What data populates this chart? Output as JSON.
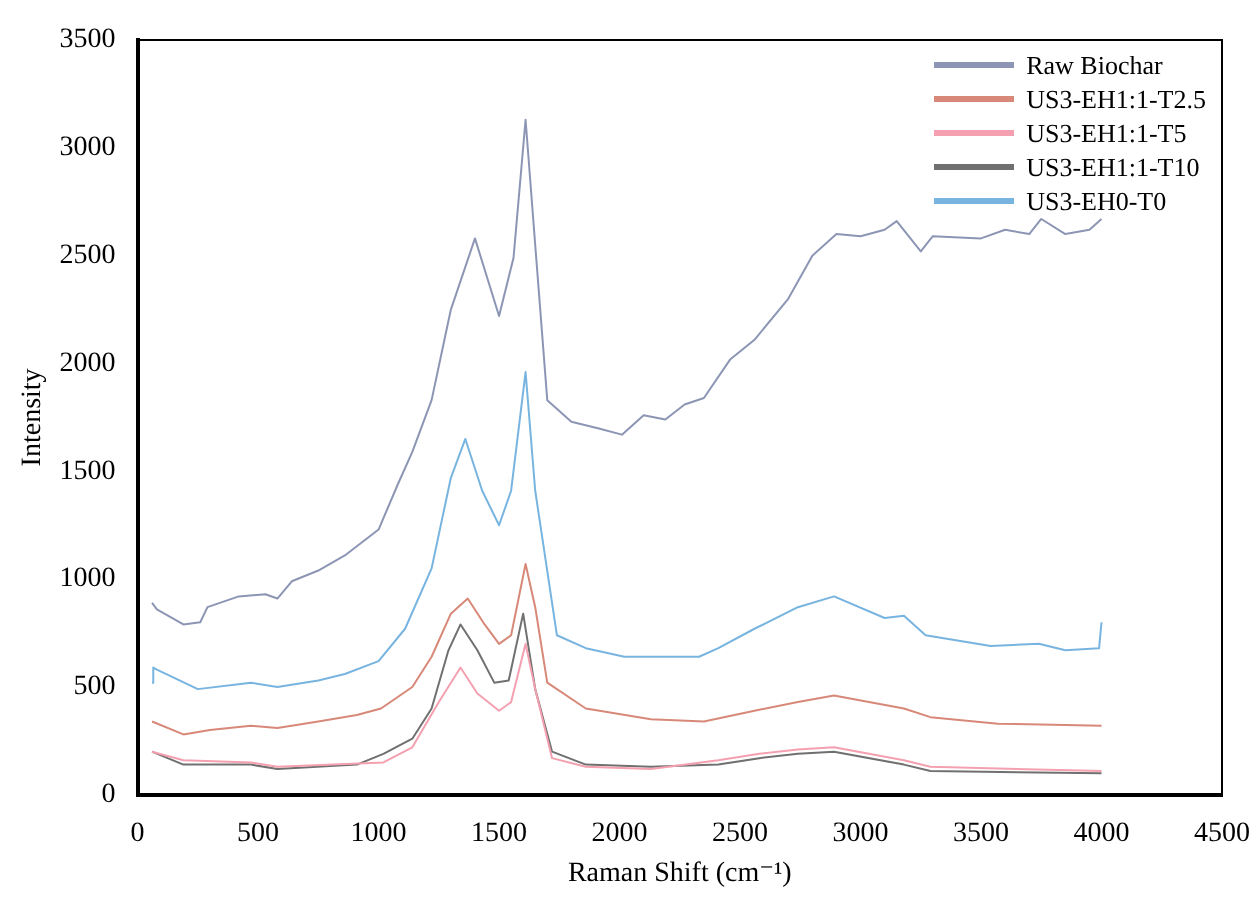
{
  "chart_data": {
    "type": "line",
    "xlabel": "Raman Shift (cm⁻¹)",
    "ylabel": "Intensity",
    "xlim": [
      0,
      4500
    ],
    "xticks": [
      0,
      500,
      1000,
      1500,
      2000,
      2500,
      3000,
      3500,
      4000,
      4500
    ],
    "ylim": [
      0,
      3500
    ],
    "yticks": [
      0,
      500,
      1000,
      1500,
      2000,
      2500,
      3000,
      3500
    ],
    "grid": false,
    "legend": "top right",
    "marker": "none",
    "line_style": "solid",
    "series": [
      {
        "name": "Raw Biochar",
        "color": "#8c96b4",
        "x": [
          60,
          80,
          190,
          260,
          290,
          420,
          530,
          580,
          640,
          750,
          860,
          1000,
          1080,
          1140,
          1220,
          1300,
          1400,
          1500,
          1560,
          1610,
          1650,
          1700,
          1800,
          1910,
          2010,
          2100,
          2190,
          2270,
          2350,
          2460,
          2560,
          2700,
          2800,
          2900,
          3000,
          3100,
          3150,
          3250,
          3300,
          3500,
          3600,
          3700,
          3750,
          3850,
          3950,
          4000
        ],
        "values": [
          890,
          860,
          790,
          800,
          870,
          920,
          930,
          910,
          990,
          1040,
          1110,
          1230,
          1440,
          1590,
          1830,
          2250,
          2580,
          2220,
          2490,
          3130,
          2550,
          1830,
          1730,
          1700,
          1670,
          1760,
          1740,
          1810,
          1840,
          2020,
          2110,
          2300,
          2500,
          2600,
          2590,
          2620,
          2660,
          2520,
          2590,
          2580,
          2620,
          2600,
          2670,
          2600,
          2620,
          2670
        ]
      },
      {
        "name": "US3-EH1:1-T2.5",
        "color": "#d88878",
        "x": [
          60,
          190,
          300,
          470,
          580,
          750,
          910,
          1010,
          1140,
          1220,
          1300,
          1370,
          1440,
          1500,
          1550,
          1610,
          1650,
          1700,
          1860,
          2130,
          2350,
          2560,
          2740,
          2890,
          3180,
          3290,
          3570,
          4000
        ],
        "values": [
          340,
          280,
          300,
          320,
          310,
          340,
          370,
          400,
          500,
          640,
          840,
          910,
          790,
          700,
          740,
          1070,
          870,
          520,
          400,
          350,
          340,
          390,
          430,
          460,
          400,
          360,
          330,
          320
        ]
      },
      {
        "name": "US3-EH1:1-T5",
        "color": "#f4a0b0",
        "x": [
          60,
          190,
          470,
          580,
          1020,
          1140,
          1250,
          1340,
          1410,
          1500,
          1550,
          1610,
          1650,
          1720,
          1860,
          2130,
          2410,
          2580,
          2740,
          2890,
          3180,
          3290,
          4000
        ],
        "values": [
          200,
          160,
          150,
          130,
          150,
          220,
          430,
          590,
          470,
          390,
          430,
          700,
          490,
          170,
          130,
          120,
          160,
          190,
          210,
          220,
          160,
          130,
          110
        ]
      },
      {
        "name": "US3-EH1:1-T10",
        "color": "#707070",
        "x": [
          60,
          190,
          470,
          580,
          910,
          1020,
          1140,
          1220,
          1290,
          1340,
          1410,
          1480,
          1540,
          1600,
          1650,
          1720,
          1860,
          2130,
          2410,
          2580,
          2740,
          2890,
          3180,
          3290,
          4000
        ],
        "values": [
          200,
          140,
          140,
          120,
          140,
          190,
          260,
          400,
          670,
          790,
          670,
          520,
          530,
          840,
          490,
          200,
          140,
          130,
          140,
          170,
          190,
          200,
          140,
          110,
          100
        ]
      },
      {
        "name": "US3-EH0-T0",
        "color": "#78b4e0",
        "x": [
          60,
          65,
          80,
          250,
          470,
          580,
          750,
          860,
          1000,
          1110,
          1220,
          1300,
          1360,
          1430,
          1500,
          1550,
          1610,
          1650,
          1740,
          1860,
          2020,
          2160,
          2330,
          2410,
          2560,
          2740,
          2890,
          3100,
          3180,
          3270,
          3540,
          3740,
          3850,
          3990,
          4000
        ],
        "values": [
          520,
          590,
          580,
          490,
          520,
          500,
          530,
          560,
          620,
          770,
          1050,
          1470,
          1650,
          1410,
          1250,
          1410,
          1960,
          1410,
          740,
          680,
          640,
          640,
          640,
          680,
          770,
          870,
          920,
          820,
          830,
          740,
          690,
          700,
          670,
          680,
          800
        ]
      }
    ]
  }
}
